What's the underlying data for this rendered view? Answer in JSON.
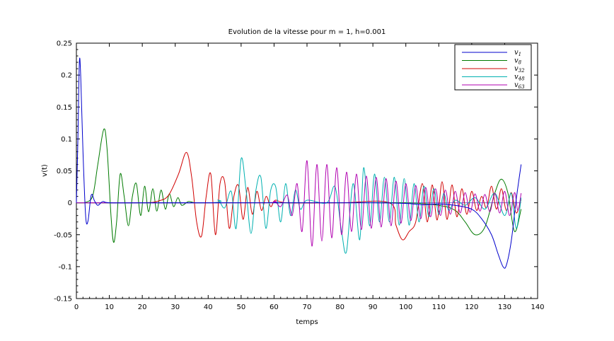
{
  "chart_data": {
    "type": "line",
    "title": "Evolution de la vitesse pour m = 1, h=0.001",
    "xlabel": "temps",
    "ylabel": "v(t)",
    "xlim": [
      0,
      140
    ],
    "ylim": [
      -0.15,
      0.25
    ],
    "x_ticks": [
      0,
      10,
      20,
      30,
      40,
      50,
      60,
      70,
      80,
      90,
      100,
      110,
      120,
      130,
      140
    ],
    "y_ticks": [
      -0.15,
      -0.1,
      -0.05,
      0,
      0.05,
      0.1,
      0.15,
      0.2,
      0.25
    ],
    "x_tick_labels": [
      "0",
      "10",
      "20",
      "30",
      "40",
      "50",
      "60",
      "70",
      "80",
      "90",
      "100",
      "110",
      "120",
      "130",
      "140"
    ],
    "y_tick_labels": [
      "-0.15",
      "-0.1",
      "-0.05",
      "0",
      "0.05",
      "0.1",
      "0.15",
      "0.2",
      "0.25"
    ],
    "grid": false,
    "legend_position": "top-right",
    "series": [
      {
        "name": "v",
        "sub": "1",
        "color": "#0000cc",
        "x": [
          0,
          0.5,
          0.9,
          1.3,
          2,
          2.8,
          3.5,
          4.5,
          5.5,
          6.5,
          8,
          10,
          20,
          40,
          60,
          80,
          90,
          100,
          105,
          110,
          115,
          120,
          123,
          126,
          128,
          129.5,
          130.5,
          132,
          133.5,
          135
        ],
        "y": [
          0,
          0.11,
          0.22,
          0.2,
          0.08,
          -0.02,
          -0.029,
          0.012,
          0.003,
          -0.004,
          0.002,
          0,
          0,
          0,
          0,
          0,
          0,
          -0.001,
          -0.003,
          -0.002,
          -0.004,
          -0.01,
          -0.025,
          -0.05,
          -0.08,
          -0.1,
          -0.098,
          -0.06,
          0.005,
          0.06
        ]
      },
      {
        "name": "v",
        "sub": "8",
        "color": "#007a00",
        "x": [
          0,
          3,
          5,
          6.5,
          8.3,
          9.3,
          10.5,
          11.3,
          12.2,
          13.3,
          14.5,
          15.8,
          17,
          18.2,
          19.5,
          20.7,
          21.9,
          23.2,
          24.4,
          25.7,
          27,
          28.2,
          29.5,
          30.8,
          32,
          34,
          36,
          40,
          60,
          80,
          100,
          110,
          115,
          118,
          121,
          124,
          127,
          129,
          131,
          133,
          135
        ],
        "y": [
          0,
          0.001,
          0.012,
          0.06,
          0.115,
          0.085,
          -0.02,
          -0.062,
          -0.03,
          0.045,
          0.01,
          -0.036,
          0.01,
          0.03,
          -0.02,
          0.026,
          -0.014,
          0.022,
          -0.013,
          0.02,
          -0.01,
          0.014,
          -0.006,
          0.008,
          -0.004,
          0.002,
          0,
          0,
          0,
          0,
          0,
          -0.004,
          -0.012,
          -0.03,
          -0.05,
          -0.038,
          0.015,
          0.037,
          0.015,
          -0.045,
          -0.01
        ]
      },
      {
        "name": "v",
        "sub": "32",
        "color": "#d00000",
        "x": [
          0,
          20,
          25,
          28,
          31,
          33.4,
          35,
          36.5,
          38,
          39.4,
          40.8,
          42.2,
          43.6,
          45,
          46.4,
          47.8,
          49.2,
          50.6,
          52,
          53.4,
          54.8,
          56.2,
          57.6,
          59,
          60.4,
          64,
          80,
          95,
          97,
          99,
          101,
          103,
          105,
          106.5,
          108,
          109.5,
          111,
          112.5,
          114,
          115.5,
          117,
          118.5,
          120,
          121.5,
          123,
          124.5,
          126,
          127.5,
          129,
          130.5,
          132,
          133.5,
          135
        ],
        "y": [
          0,
          0,
          0.003,
          0.012,
          0.045,
          0.079,
          0.04,
          -0.03,
          -0.052,
          0.01,
          0.045,
          -0.05,
          0.03,
          0.033,
          -0.04,
          0.01,
          0.027,
          -0.026,
          0.024,
          -0.018,
          0.018,
          -0.012,
          0.01,
          -0.006,
          0.004,
          0,
          0,
          0,
          -0.035,
          -0.058,
          -0.045,
          -0.03,
          0.03,
          -0.03,
          0.028,
          -0.027,
          0.033,
          -0.026,
          0.028,
          -0.022,
          0.022,
          -0.018,
          0.018,
          -0.012,
          0.01,
          -0.008,
          0.026,
          -0.01,
          0.022,
          -0.012,
          0.016,
          -0.016,
          0.005
        ]
      },
      {
        "name": "v",
        "sub": "48",
        "color": "#00b0b0",
        "x": [
          0,
          40,
          43,
          45,
          47,
          48.5,
          50,
          51.5,
          53,
          54.5,
          56,
          57.5,
          59,
          60.5,
          62,
          63.5,
          65,
          66.5,
          68,
          70,
          76,
          78.5,
          80.5,
          82,
          84,
          86,
          87.2,
          89,
          90.5,
          92,
          93.5,
          95,
          96.5,
          98,
          99.5,
          101,
          102.5,
          104,
          105.5,
          107,
          108.5,
          110,
          111.5,
          113,
          115,
          118,
          121,
          124,
          127,
          130,
          132,
          133.5,
          135
        ],
        "y": [
          0,
          0,
          0.004,
          -0.008,
          0.018,
          -0.04,
          0.069,
          0.02,
          -0.048,
          0.02,
          0.04,
          -0.04,
          0.02,
          0.025,
          -0.03,
          0.03,
          -0.02,
          0.02,
          -0.01,
          0.004,
          0,
          0.025,
          -0.045,
          -0.076,
          0.03,
          -0.058,
          0.055,
          -0.036,
          0.045,
          -0.03,
          0.04,
          -0.03,
          0.04,
          -0.035,
          0.038,
          -0.035,
          0.03,
          -0.03,
          0.026,
          -0.022,
          0.022,
          -0.018,
          0.015,
          -0.012,
          0.004,
          -0.004,
          0.008,
          -0.01,
          0.015,
          -0.02,
          0.015,
          -0.04,
          0.008
        ]
      },
      {
        "name": "v",
        "sub": "63",
        "color": "#b000b0",
        "x": [
          0,
          55,
          60,
          62,
          64,
          65.5,
          67,
          68.5,
          70,
          71.5,
          73,
          74.5,
          76,
          77.5,
          79,
          80.5,
          82,
          83.5,
          85,
          86.5,
          88,
          89.5,
          91,
          92.5,
          94,
          95.5,
          97,
          98.5,
          100,
          101.5,
          103,
          104.5,
          106,
          107.5,
          109,
          110.5,
          112,
          113.5,
          115,
          116.5,
          118,
          119.5,
          121,
          122.5,
          124,
          125.5,
          127,
          128.5,
          130,
          131.5,
          133,
          134,
          135
        ],
        "y": [
          0,
          0,
          0.002,
          -0.006,
          0.012,
          -0.02,
          0.03,
          -0.045,
          0.066,
          -0.068,
          0.06,
          -0.06,
          0.06,
          -0.055,
          0.055,
          -0.05,
          0.048,
          -0.045,
          0.045,
          -0.042,
          0.042,
          -0.04,
          0.04,
          -0.038,
          0.038,
          -0.036,
          0.034,
          -0.032,
          0.03,
          -0.028,
          0.027,
          -0.025,
          0.024,
          -0.022,
          0.022,
          -0.02,
          0.02,
          -0.018,
          0.018,
          -0.016,
          0.016,
          -0.015,
          0.014,
          -0.013,
          0.013,
          -0.014,
          0.015,
          -0.016,
          0.018,
          -0.02,
          0.016,
          -0.012,
          0.015
        ]
      }
    ]
  }
}
